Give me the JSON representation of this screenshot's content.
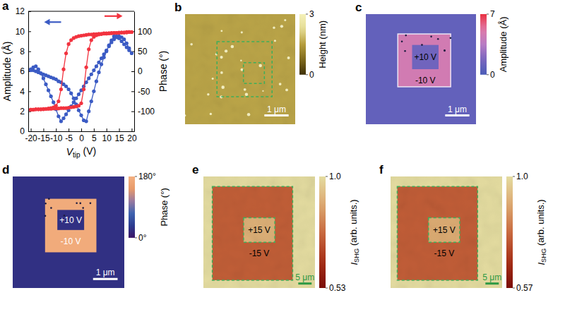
{
  "chart_data": [
    {
      "panel": "a",
      "type": "line",
      "xlabel": "Vtip (V)",
      "ylabel": "Amplitude (Å)",
      "y2label": "Phase (°)",
      "x": [
        -20,
        -19,
        -18,
        -17,
        -16,
        -15,
        -14,
        -13,
        -12,
        -11,
        -10,
        -9,
        -8,
        -7,
        -6,
        -5,
        -4,
        -3,
        -2,
        -1,
        0,
        1,
        2,
        3,
        4,
        5,
        6,
        7,
        8,
        9,
        10,
        11,
        12,
        13,
        14,
        15,
        16,
        17,
        18,
        19,
        20,
        19,
        18,
        17,
        16,
        15,
        14,
        13,
        12,
        11,
        10,
        9,
        8,
        7,
        6,
        5,
        4,
        3,
        2,
        1,
        0,
        -1,
        -2,
        -3,
        -4,
        -5,
        -6,
        -7,
        -8,
        -9,
        -10,
        -11,
        -12,
        -13,
        -14,
        -15,
        -16,
        -17,
        -18,
        -19,
        -20
      ],
      "xlim": [
        -21,
        21
      ],
      "xticks": [
        -20,
        -15,
        -10,
        -5,
        0,
        5,
        10,
        15,
        20
      ],
      "ylim": [
        0,
        12
      ],
      "yticks": [
        0,
        2,
        4,
        6,
        8,
        10,
        12
      ],
      "y2lim": [
        -150,
        150
      ],
      "y2ticks": [
        -100,
        -50,
        0,
        50,
        100
      ],
      "series": [
        {
          "color": "#3b5bc4",
          "marker": "circle",
          "line_style": "solid",
          "values": [
            6.2,
            6.1,
            6.0,
            5.9,
            5.8,
            5.7,
            5.6,
            5.5,
            5.4,
            5.3,
            5.2,
            5.0,
            4.9,
            4.7,
            4.5,
            4.2,
            3.8,
            3.3,
            2.7,
            2.1,
            1.6,
            1.1,
            1.0,
            2.0,
            3.0,
            4.0,
            5.0,
            5.9,
            6.7,
            7.4,
            8.0,
            8.6,
            9.1,
            9.5,
            9.5,
            9.3,
            9.0,
            8.7,
            8.4,
            8.1,
            7.8,
            8.3,
            8.8,
            9.2,
            9.4,
            9.5,
            9.4,
            9.2,
            8.9,
            8.5,
            8.1,
            7.7,
            7.3,
            6.9,
            6.5,
            6.1,
            5.7,
            5.3,
            4.9,
            4.5,
            4.1,
            3.7,
            3.3,
            2.9,
            2.5,
            2.1,
            1.7,
            1.3,
            1.0,
            1.5,
            2.2,
            2.9,
            3.5,
            4.1,
            4.7,
            5.3,
            5.8,
            6.2,
            6.5,
            6.4,
            6.1
          ]
        },
        {
          "color": "#f2333f",
          "marker": "circle",
          "line_style": "solid",
          "axis": "y2",
          "values": [
            -96,
            -96,
            -95,
            -95,
            -95,
            -95,
            -94,
            -94,
            -94,
            -93,
            -93,
            -93,
            -92,
            -92,
            -92,
            -91,
            -90,
            -89,
            -88,
            -86,
            -80,
            -45,
            10,
            55,
            78,
            86,
            90,
            92,
            93,
            94,
            94,
            95,
            95,
            96,
            96,
            96,
            97,
            97,
            97,
            98,
            98,
            98,
            98,
            97,
            97,
            97,
            96,
            96,
            96,
            95,
            95,
            95,
            94,
            94,
            93,
            93,
            92,
            92,
            91,
            90,
            89,
            88,
            86,
            83,
            78,
            68,
            45,
            5,
            -45,
            -75,
            -86,
            -90,
            -92,
            -93,
            -94,
            -94,
            -95,
            -95,
            -95,
            -96,
            -96
          ]
        }
      ]
    },
    {
      "panel": "b",
      "type": "heatmap",
      "background": 1.6,
      "colorbar": {
        "label": "Height (nm)",
        "range": [
          0,
          3
        ],
        "ticks": [
          0,
          3
        ]
      },
      "scale_bar": "1 μm"
    },
    {
      "panel": "c",
      "type": "heatmap",
      "background": 0.9,
      "regions": [
        {
          "label": "+10 V",
          "value": 1.4
        },
        {
          "label": "-10 V",
          "value": 4.6
        }
      ],
      "colorbar": {
        "label": "Amplitude (Å)",
        "range": [
          0,
          7
        ],
        "ticks": [
          0,
          7
        ]
      },
      "scale_bar": "1 μm"
    },
    {
      "panel": "d",
      "type": "heatmap",
      "background": 25,
      "regions": [
        {
          "label": "+10 V",
          "value": 25
        },
        {
          "label": "-10 V",
          "value": 172
        }
      ],
      "colorbar": {
        "label": "Phase (°)",
        "range": [
          0,
          180
        ],
        "ticks": [
          {
            "value": 0,
            "label": "0°"
          },
          {
            "value": 180,
            "label": "180°"
          }
        ]
      },
      "scale_bar": "1 μm"
    },
    {
      "panel": "e",
      "type": "heatmap",
      "background": 1.0,
      "regions": [
        {
          "label": "+15 V",
          "value": 0.9
        },
        {
          "label": "-15 V",
          "value": 0.74
        }
      ],
      "colorbar": {
        "label": "ISHG (arb. units.)",
        "range": [
          0.53,
          1.0
        ],
        "ticks": [
          0.53,
          {
            "value": 1.0,
            "label": "1.0"
          }
        ]
      },
      "scale_bar": "5 μm"
    },
    {
      "panel": "f",
      "type": "heatmap",
      "background": 1.0,
      "regions": [
        {
          "label": "+15 V",
          "value": 0.9
        },
        {
          "label": "-15 V",
          "value": 0.76
        }
      ],
      "colorbar": {
        "label": "ISHG (arb. units.)",
        "range": [
          0.57,
          1.0
        ],
        "ticks": [
          0.57,
          {
            "value": 1.0,
            "label": "1.0"
          }
        ]
      },
      "scale_bar": "5 μm"
    }
  ]
}
